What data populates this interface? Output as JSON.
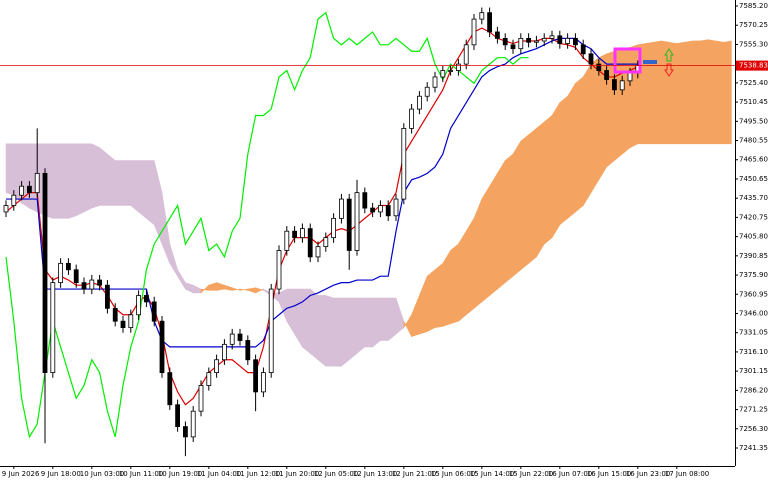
{
  "chart_data": {
    "type": "candlestick",
    "xlim": [
      -0.77,
      93.46
    ],
    "ylim": [
      7227.35,
      7589.87
    ],
    "xticks": [
      {
        "value": 1,
        "label": "9 Jun 2026"
      },
      {
        "value": 6,
        "label": "9 Jun 18:00"
      },
      {
        "value": 11,
        "label": "10 Jun 03:00"
      },
      {
        "value": 16,
        "label": "10 Jun 11:00"
      },
      {
        "value": 21,
        "label": "10 Jun 19:00"
      },
      {
        "value": 26,
        "label": "11 Jun 04:00"
      },
      {
        "value": 31,
        "label": "11 Jun 12:00"
      },
      {
        "value": 36,
        "label": "11 Jun 20:00"
      },
      {
        "value": 41,
        "label": "12 Jun 05:00"
      },
      {
        "value": 46,
        "label": "12 Jun 13:00"
      },
      {
        "value": 51,
        "label": "12 Jun 21:00"
      },
      {
        "value": 56,
        "label": "15 Jun 06:00"
      },
      {
        "value": 61,
        "label": "15 Jun 14:00"
      },
      {
        "value": 66,
        "label": "15 Jun 22:00"
      },
      {
        "value": 71,
        "label": "16 Jun 07:00"
      },
      {
        "value": 76,
        "label": "16 Jun 15:00"
      },
      {
        "value": 81,
        "label": "16 Jun 23:00"
      },
      {
        "value": 86,
        "label": "17 Jun 08:00"
      }
    ],
    "yticks": [
      {
        "value": 7585.2,
        "label": "7585.20"
      },
      {
        "value": 7570.25,
        "label": "7570.25"
      },
      {
        "value": 7555.3,
        "label": "7555.30"
      },
      {
        "value": 7525.4,
        "label": "7525.40"
      },
      {
        "value": 7510.45,
        "label": "7510.45"
      },
      {
        "value": 7495.5,
        "label": "7495.50"
      },
      {
        "value": 7480.55,
        "label": "7480.55"
      },
      {
        "value": 7465.6,
        "label": "7465.60"
      },
      {
        "value": 7450.65,
        "label": "7450.65"
      },
      {
        "value": 7435.7,
        "label": "7435.70"
      },
      {
        "value": 7420.75,
        "label": "7420.75"
      },
      {
        "value": 7405.8,
        "label": "7405.80"
      },
      {
        "value": 7390.85,
        "label": "7390.85"
      },
      {
        "value": 7375.9,
        "label": "7375.90"
      },
      {
        "value": 7360.95,
        "label": "7360.95"
      },
      {
        "value": 7346,
        "label": "7346.00"
      },
      {
        "value": 7331.05,
        "label": "7331.05"
      },
      {
        "value": 7316.1,
        "label": "7316.10"
      },
      {
        "value": 7301.15,
        "label": "7301.15"
      },
      {
        "value": 7286.2,
        "label": "7286.20"
      },
      {
        "value": 7271.25,
        "label": "7271.25"
      },
      {
        "value": 7256.3,
        "label": "7256.30"
      },
      {
        "value": 7241.35,
        "label": "7241.35"
      }
    ],
    "current_price": {
      "value": 7538.83,
      "label": "7538.83",
      "color": "#e00000"
    },
    "candles": [
      [
        7425,
        7434,
        7421,
        7430
      ],
      [
        7430,
        7442,
        7426,
        7438
      ],
      [
        7438,
        7449,
        7434,
        7445
      ],
      [
        7445,
        7449,
        7436,
        7440
      ],
      [
        7440,
        7490,
        7436,
        7455
      ],
      [
        7455,
        7459,
        7245,
        7300
      ],
      [
        7300,
        7374,
        7296,
        7370
      ],
      [
        7370,
        7389,
        7366,
        7385
      ],
      [
        7385,
        7389,
        7376,
        7380
      ],
      [
        7380,
        7384,
        7366,
        7370
      ],
      [
        7370,
        7374,
        7361,
        7365
      ],
      [
        7365,
        7376,
        7361,
        7372
      ],
      [
        7372,
        7376,
        7364,
        7368
      ],
      [
        7368,
        7372,
        7346,
        7350
      ],
      [
        7350,
        7354,
        7336,
        7340
      ],
      [
        7340,
        7344,
        7331,
        7335
      ],
      [
        7335,
        7349,
        7331,
        7345
      ],
      [
        7345,
        7364,
        7341,
        7360
      ],
      [
        7360,
        7364,
        7351,
        7355
      ],
      [
        7355,
        7359,
        7336,
        7340
      ],
      [
        7340,
        7344,
        7296,
        7300
      ],
      [
        7300,
        7304,
        7271,
        7275
      ],
      [
        7275,
        7279,
        7254,
        7258
      ],
      [
        7258,
        7262,
        7235,
        7250
      ],
      [
        7250,
        7274,
        7246,
        7270
      ],
      [
        7270,
        7294,
        7266,
        7290
      ],
      [
        7290,
        7304,
        7286,
        7300
      ],
      [
        7300,
        7314,
        7296,
        7310
      ],
      [
        7310,
        7326,
        7306,
        7322
      ],
      [
        7322,
        7334,
        7318,
        7330
      ],
      [
        7330,
        7334,
        7321,
        7325
      ],
      [
        7325,
        7329,
        7306,
        7310
      ],
      [
        7310,
        7314,
        7270,
        7285
      ],
      [
        7285,
        7304,
        7281,
        7300
      ],
      [
        7300,
        7369,
        7296,
        7365
      ],
      [
        7365,
        7399,
        7361,
        7395
      ],
      [
        7395,
        7414,
        7391,
        7410
      ],
      [
        7410,
        7414,
        7401,
        7405
      ],
      [
        7405,
        7416,
        7401,
        7412
      ],
      [
        7412,
        7416,
        7386,
        7390
      ],
      [
        7390,
        7402,
        7386,
        7398
      ],
      [
        7398,
        7409,
        7394,
        7405
      ],
      [
        7405,
        7424,
        7401,
        7420
      ],
      [
        7420,
        7439,
        7416,
        7435
      ],
      [
        7435,
        7439,
        7380,
        7395
      ],
      [
        7395,
        7450,
        7391,
        7440
      ],
      [
        7440,
        7444,
        7424,
        7428
      ],
      [
        7428,
        7432,
        7421,
        7425
      ],
      [
        7425,
        7434,
        7421,
        7430
      ],
      [
        7430,
        7434,
        7418,
        7422
      ],
      [
        7422,
        7439,
        7418,
        7435
      ],
      [
        7435,
        7494,
        7431,
        7490
      ],
      [
        7490,
        7509,
        7486,
        7505
      ],
      [
        7505,
        7519,
        7501,
        7515
      ],
      [
        7515,
        7526,
        7511,
        7522
      ],
      [
        7522,
        7534,
        7518,
        7530
      ],
      [
        7530,
        7539,
        7526,
        7535
      ],
      [
        7535,
        7539,
        7531,
        7535
      ],
      [
        7535,
        7544,
        7531,
        7540
      ],
      [
        7540,
        7559,
        7536,
        7555
      ],
      [
        7555,
        7579,
        7551,
        7575
      ],
      [
        7575,
        7584,
        7571,
        7580
      ],
      [
        7580,
        7584,
        7561,
        7565
      ],
      [
        7565,
        7569,
        7556,
        7560
      ],
      [
        7560,
        7564,
        7551,
        7555
      ],
      [
        7555,
        7559,
        7548,
        7552
      ],
      [
        7552,
        7564,
        7548,
        7560
      ],
      [
        7560,
        7564,
        7553,
        7557
      ],
      [
        7557,
        7562,
        7553,
        7558
      ],
      [
        7558,
        7564,
        7554,
        7560
      ],
      [
        7560,
        7566,
        7556,
        7562
      ],
      [
        7562,
        7566,
        7552,
        7556
      ],
      [
        7556,
        7564,
        7552,
        7560
      ],
      [
        7560,
        7564,
        7551,
        7555
      ],
      [
        7555,
        7559,
        7544,
        7548
      ],
      [
        7548,
        7552,
        7536,
        7540
      ],
      [
        7540,
        7544,
        7531,
        7535
      ],
      [
        7535,
        7539,
        7524,
        7528
      ],
      [
        7528,
        7532,
        7516,
        7520
      ],
      [
        7520,
        7531,
        7516,
        7527
      ],
      [
        7527,
        7537,
        7523,
        7533
      ],
      [
        7533,
        7542.83,
        7529,
        7538.83
      ]
    ],
    "bull_color": "#ffffff",
    "bear_color": "#000000",
    "series": [
      {
        "color": "#e00000",
        "values": [
          7425,
          7430,
          7435,
          7440,
          7440,
          7380,
          7372,
          7375,
          7372,
          7368,
          7368,
          7370,
          7368,
          7360,
          7350,
          7345,
          7345,
          7355,
          7360,
          7350,
          7330,
          7300,
          7285,
          7275,
          7280,
          7290,
          7300,
          7305,
          7310,
          7310,
          7305,
          7300,
          7300,
          7320,
          7350,
          7380,
          7395,
          7405,
          7405,
          7405,
          7400,
          7405,
          7410,
          7412,
          7410,
          7415,
          7420,
          7425,
          7430,
          7430,
          7440,
          7470,
          7480,
          7490,
          7500,
          7510,
          7520,
          7535,
          7545,
          7555,
          7565,
          7568,
          7565,
          7560,
          7558,
          7556,
          7558,
          7558,
          7558,
          7560,
          7560,
          7556,
          7555,
          7553,
          7545,
          7540,
          7535,
          7530,
          7530,
          7533,
          7535,
          7538
        ]
      },
      {
        "color": "#0000cc",
        "values": [
          7435,
          7435,
          7435,
          7435,
          7435,
          7365,
          7365,
          7365,
          7365,
          7365,
          7365,
          7365,
          7365,
          7365,
          7365,
          7365,
          7365,
          7365,
          7365,
          7340,
          7325,
          7320,
          7320,
          7320,
          7320,
          7320,
          7320,
          7320,
          7320,
          7320,
          7320,
          7320,
          7320,
          7325,
          7340,
          7345,
          7350,
          7352,
          7355,
          7360,
          7362,
          7365,
          7368,
          7370,
          7370,
          7372,
          7372,
          7372,
          7375,
          7375,
          7410,
          7440,
          7450,
          7452,
          7455,
          7460,
          7470,
          7490,
          7500,
          7510,
          7520,
          7530,
          7535,
          7538,
          7540,
          7545,
          7548,
          7550,
          7552,
          7555,
          7558,
          7560,
          7560,
          7560,
          7555,
          7552,
          7545,
          7540,
          7540,
          7540,
          7540,
          7540
        ]
      },
      {
        "color": "#00ee00",
        "values": [
          7390,
          7340,
          7280,
          7250,
          7260,
          7300,
          7340,
          7320,
          7300,
          7280,
          7290,
          7310,
          7300,
          7270,
          7250,
          7290,
          7320,
          7340,
          7380,
          7400,
          7410,
          7420,
          7430,
          7400,
          7410,
          7420,
          7395,
          7400,
          7390,
          7410,
          7420,
          7470,
          7500,
          7500,
          7505,
          7530,
          7535,
          7520,
          7535,
          7545,
          7575,
          7580,
          7560,
          7555,
          7560,
          7555,
          7560,
          7565,
          7555,
          7555,
          7560,
          7555,
          7550,
          7550,
          7560,
          7540,
          7528,
          7540,
          7535,
          7530,
          7525,
          7535,
          7540,
          7545,
          7545,
          7540,
          7545,
          7545,
          null,
          null,
          null,
          null,
          null,
          null,
          null,
          null,
          null,
          null,
          null,
          null,
          null,
          null
        ]
      }
    ],
    "cloud": {
      "bull_color": "#f4a460",
      "bear_color": "#d8bfd8",
      "span_a": [
        7440,
        7438,
        7432,
        7428,
        7425,
        7422,
        7420,
        7420,
        7420,
        7422,
        7425,
        7428,
        7430,
        7430,
        7430,
        7430,
        7430,
        7425,
        7420,
        7415,
        7400,
        7385,
        7375,
        7365,
        7362,
        7362,
        7368,
        7370,
        7368,
        7366,
        7364,
        7365,
        7366,
        7364,
        7360,
        7355,
        7340,
        7330,
        7320,
        7315,
        7310,
        7305,
        7305,
        7305,
        7310,
        7315,
        7320,
        7320,
        7325,
        7325,
        7330,
        7335,
        7345,
        7360,
        7375,
        7380,
        7385,
        7395,
        7400,
        7410,
        7420,
        7435,
        7445,
        7455,
        7465,
        7470,
        7480,
        7485,
        7490,
        7495,
        7500,
        7510,
        7515,
        7525,
        7530,
        7540,
        7545,
        7548,
        7550,
        7552,
        7553,
        7555,
        7556,
        7557,
        7558,
        7557,
        7556,
        7557,
        7558,
        7558,
        7559,
        7558,
        7557,
        7558
      ],
      "span_b": [
        7478,
        7478,
        7478,
        7478,
        7478,
        7478,
        7478,
        7478,
        7478,
        7478,
        7478,
        7478,
        7475,
        7470,
        7465,
        7465,
        7465,
        7465,
        7465,
        7465,
        7440,
        7400,
        7380,
        7370,
        7368,
        7365,
        7364,
        7364,
        7365,
        7364,
        7365,
        7364,
        7362,
        7365,
        7362,
        7362,
        7365,
        7365,
        7365,
        7365,
        7360,
        7360,
        7358,
        7358,
        7358,
        7358,
        7358,
        7358,
        7358,
        7358,
        7358,
        7340,
        7328,
        7330,
        7332,
        7335,
        7336,
        7338,
        7340,
        7345,
        7350,
        7355,
        7360,
        7365,
        7370,
        7375,
        7380,
        7385,
        7390,
        7400,
        7405,
        7415,
        7420,
        7425,
        7430,
        7440,
        7450,
        7460,
        7465,
        7470,
        7475,
        7478,
        7478,
        7478,
        7478,
        7478,
        7478,
        7478,
        7478,
        7478,
        7478,
        7478,
        7478,
        7478
      ]
    }
  }
}
